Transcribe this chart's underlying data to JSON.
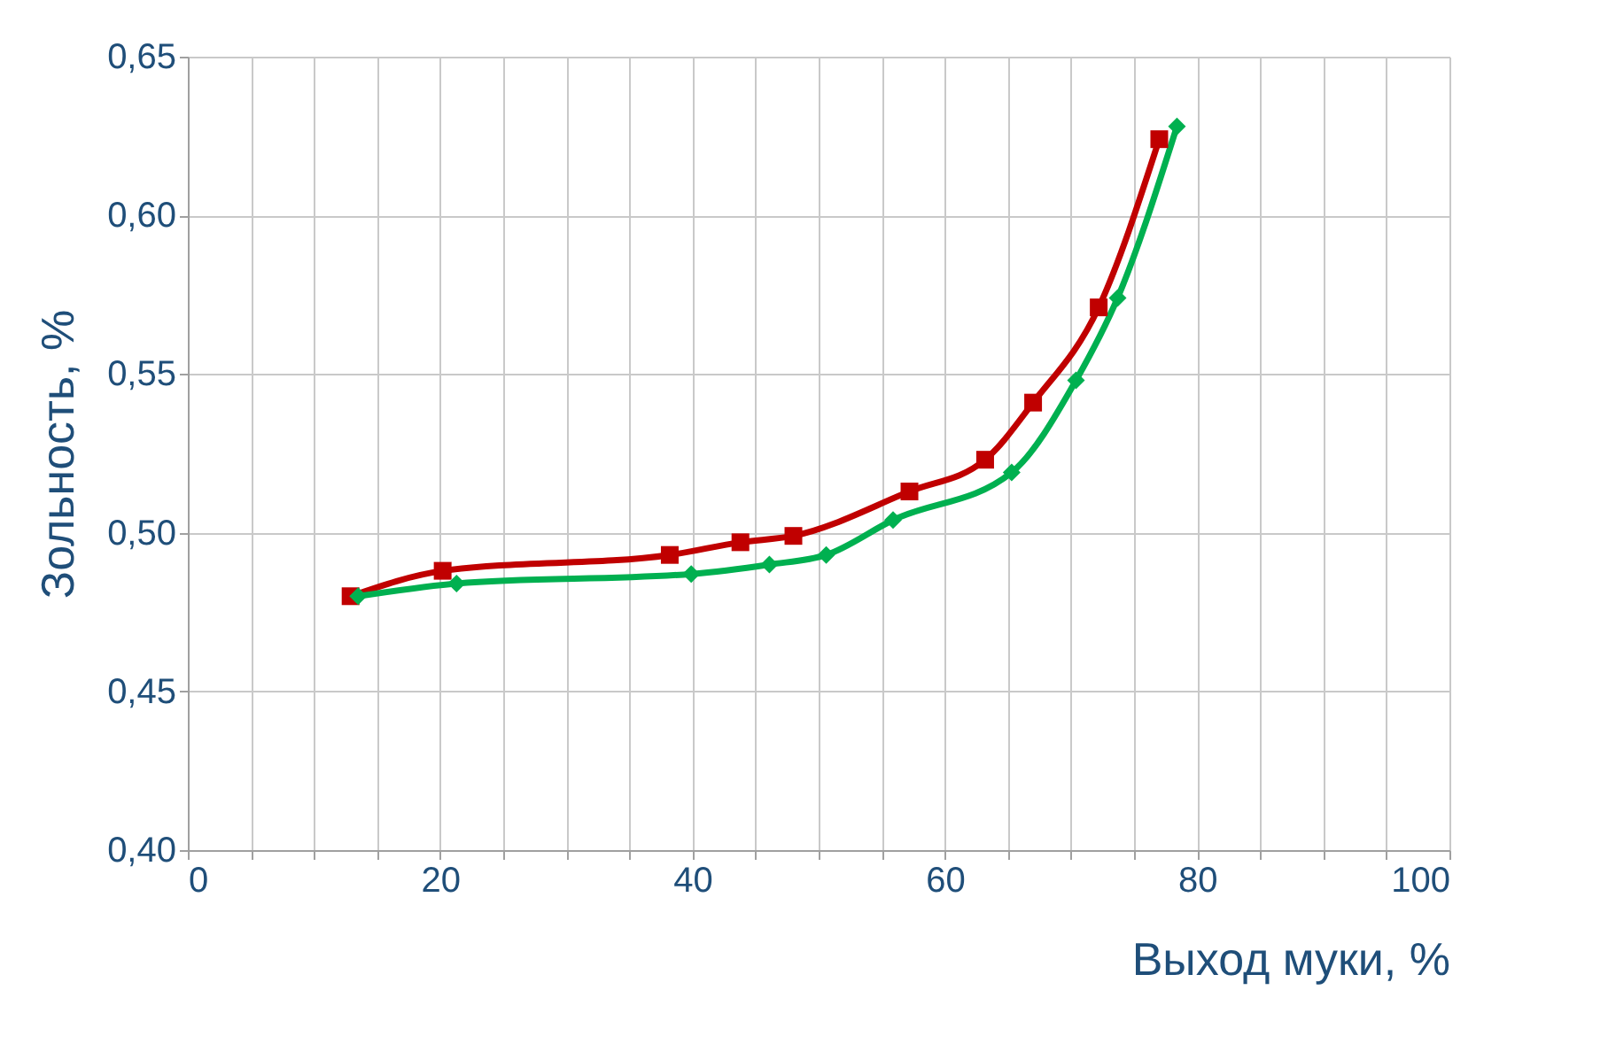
{
  "chart_data": {
    "type": "line",
    "xlabel": "Выход муки, %",
    "ylabel": "Зольность, %",
    "xlim": [
      0,
      100
    ],
    "ylim": [
      0.4,
      0.65
    ],
    "xticks": [
      0,
      {
        "value": 5,
        "label": null
      },
      {
        "value": 10,
        "label": null
      },
      {
        "value": 15,
        "label": null
      },
      20,
      {
        "value": 25,
        "label": null
      },
      {
        "value": 30,
        "label": null
      },
      {
        "value": 35,
        "label": null
      },
      40,
      {
        "value": 45,
        "label": null
      },
      {
        "value": 50,
        "label": null
      },
      {
        "value": 55,
        "label": null
      },
      60,
      {
        "value": 65,
        "label": null
      },
      {
        "value": 70,
        "label": null
      },
      {
        "value": 75,
        "label": null
      },
      80,
      {
        "value": 85,
        "label": null
      },
      {
        "value": 90,
        "label": null
      },
      {
        "value": 95,
        "label": null
      },
      100
    ],
    "yticks": [
      {
        "value": 0.4,
        "label": "0,40"
      },
      {
        "value": 0.45,
        "label": "0,45"
      },
      {
        "value": 0.5,
        "label": "0,50"
      },
      {
        "value": 0.55,
        "label": "0,55"
      },
      {
        "value": 0.6,
        "label": "0,60"
      },
      {
        "value": 0.65,
        "label": "0,65"
      }
    ],
    "grid": true,
    "legend": false,
    "line_style": "solid",
    "series": [
      {
        "color": "#c00000",
        "marker": "square",
        "x": [
          12.9,
          20.2,
          38.2,
          43.8,
          48.0,
          57.2,
          63.2,
          67.0,
          72.2,
          77.0
        ],
        "values": [
          0.48,
          0.488,
          0.493,
          0.497,
          0.499,
          0.513,
          0.523,
          0.541,
          0.571,
          0.624
        ]
      },
      {
        "color": "#00b050",
        "marker": "diamond",
        "x": [
          13.5,
          21.3,
          39.9,
          46.1,
          50.6,
          55.9,
          65.3,
          70.4,
          73.7,
          78.4
        ],
        "values": [
          0.48,
          0.484,
          0.487,
          0.49,
          0.493,
          0.504,
          0.519,
          0.548,
          0.574,
          0.628
        ]
      }
    ]
  }
}
